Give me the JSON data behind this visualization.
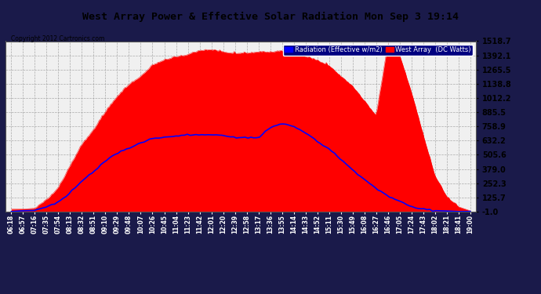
{
  "title": "West Array Power & Effective Solar Radiation Mon Sep 3 19:14",
  "copyright": "Copyright 2012 Cartronics.com",
  "legend_labels": [
    "Radiation (Effective w/m2)",
    "West Array  (DC Watts)"
  ],
  "legend_colors": [
    "#0000cc",
    "#cc0000"
  ],
  "bg_color": "#1a1a4a",
  "plot_bg_color": "#f0f0f0",
  "grid_color": "#aaaaaa",
  "title_color": "#000000",
  "yticks": [
    -1.0,
    125.7,
    252.3,
    379.0,
    505.6,
    632.2,
    758.9,
    885.5,
    1012.2,
    1138.8,
    1265.5,
    1392.1,
    1518.7
  ],
  "ymin": -1.0,
  "ymax": 1518.7,
  "x_times": [
    "06:18",
    "06:57",
    "07:16",
    "07:35",
    "07:54",
    "08:13",
    "08:32",
    "08:51",
    "09:10",
    "09:29",
    "09:48",
    "10:07",
    "10:26",
    "10:45",
    "11:04",
    "11:23",
    "11:42",
    "12:01",
    "12:20",
    "12:39",
    "12:58",
    "13:17",
    "13:36",
    "13:55",
    "14:14",
    "14:33",
    "14:52",
    "15:11",
    "15:30",
    "15:49",
    "16:08",
    "16:27",
    "16:46",
    "17:05",
    "17:24",
    "17:43",
    "18:02",
    "18:21",
    "18:41",
    "19:00"
  ],
  "red_values": [
    5,
    8,
    25,
    80,
    200,
    380,
    560,
    720,
    870,
    1010,
    1120,
    1200,
    1280,
    1340,
    1370,
    1390,
    1400,
    1408,
    1405,
    1402,
    1400,
    1398,
    1405,
    1410,
    1395,
    1370,
    1330,
    1280,
    1200,
    1100,
    980,
    840,
    1480,
    1380,
    1050,
    680,
    320,
    120,
    30,
    3
  ],
  "blue_values": [
    2,
    4,
    12,
    38,
    90,
    170,
    265,
    360,
    450,
    520,
    575,
    615,
    645,
    665,
    675,
    682,
    685,
    680,
    675,
    668,
    660,
    655,
    758,
    790,
    760,
    700,
    630,
    555,
    465,
    375,
    285,
    200,
    140,
    90,
    52,
    25,
    10,
    4,
    1,
    0
  ],
  "red_color": "#ff0000",
  "blue_color": "#0000ff"
}
